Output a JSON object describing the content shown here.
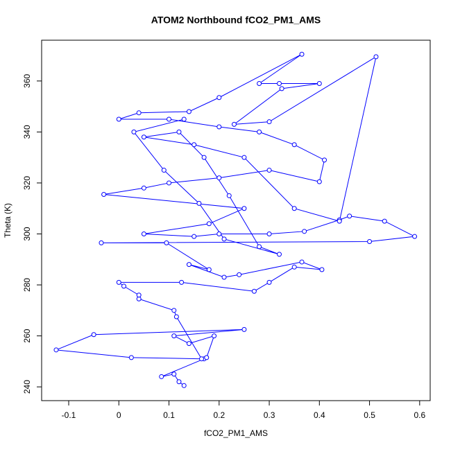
{
  "chart_data": {
    "type": "line",
    "title": "ATOM2 Northbound fCO2_PM1_AMS",
    "x_label": "fCO2_PM1_AMS",
    "y_label": "Theta (K)",
    "color": "#0000ff",
    "x": [
      0.13,
      0.12,
      0.11,
      0.085,
      0.17,
      0.175,
      0.19,
      0.14,
      0.11,
      0.25,
      -0.05,
      -0.125,
      0.025,
      0.165,
      0.115,
      0.11,
      0.04,
      0.04,
      0.01,
      0,
      0.125,
      0.27,
      0.3,
      0.35,
      0.405,
      0.365,
      0.24,
      0.21,
      0.14,
      0.18,
      0.095,
      -0.035,
      0.5,
      0.59,
      0.53,
      0.46,
      0.44,
      0.37,
      0.3,
      0.2,
      0.15,
      0.05,
      0.18,
      0.25,
      -0.03,
      0.05,
      0.1,
      0.2,
      0.3,
      0.4,
      0.41,
      0.35,
      0.28,
      0.2,
      0.1,
      0,
      0.04,
      0.14,
      0.2,
      0.365,
      0.28,
      0.32,
      0.4,
      0.325,
      0.23,
      0.3,
      0.513,
      0.44,
      0.35,
      0.25,
      0.15,
      0.05,
      0.12,
      0.17,
      0.22,
      0.28,
      0.32,
      0.21,
      0.16,
      0.09,
      0.03,
      0.13
    ],
    "values": [
      240.5,
      242,
      245,
      244,
      251,
      251.5,
      260,
      257,
      260,
      262.5,
      260.5,
      254.5,
      251.5,
      251,
      267.5,
      270,
      274.5,
      276,
      279.5,
      281,
      281,
      277.5,
      281,
      287,
      286,
      289,
      284,
      283,
      288,
      286,
      296.5,
      296.5,
      297,
      299,
      305,
      307,
      305.5,
      301,
      300,
      300,
      299,
      300,
      304,
      310,
      315.5,
      318,
      320,
      322,
      325,
      320.5,
      329,
      335,
      340,
      342,
      345,
      345,
      347.5,
      348,
      353.5,
      370.5,
      359,
      359,
      359,
      357,
      343,
      344,
      369.5,
      305,
      310,
      330,
      335,
      338,
      340,
      330,
      315,
      295,
      292,
      298,
      312,
      325,
      340,
      345
    ],
    "xlim": [
      -0.154,
      0.621
    ],
    "ylim": [
      234.6,
      376
    ],
    "xticks": [
      -0.1,
      0,
      0.1,
      0.2,
      0.3,
      0.4,
      0.5,
      0.6
    ],
    "yticks": [
      240,
      260,
      280,
      300,
      320,
      340,
      360
    ]
  }
}
